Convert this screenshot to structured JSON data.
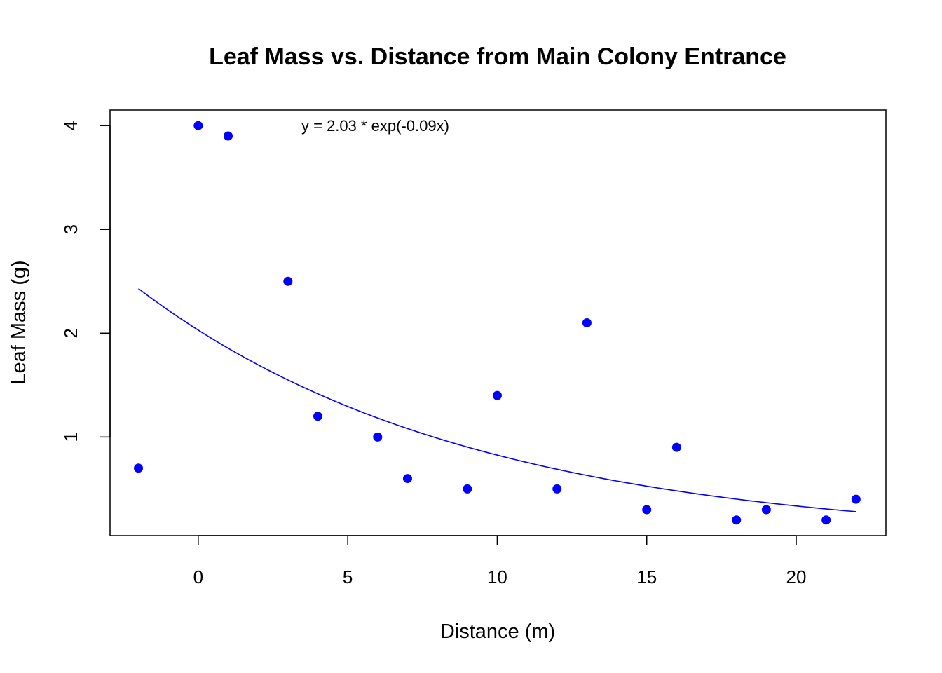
{
  "chart_data": {
    "type": "scatter",
    "title": "Leaf Mass vs. Distance from Main Colony Entrance",
    "xlabel": "Distance (m)",
    "ylabel": "Leaf Mass (g)",
    "xlim": [
      -2.95,
      23.0
    ],
    "ylim": [
      0.05,
      4.15
    ],
    "x_ticks": [
      0,
      5,
      10,
      15,
      20
    ],
    "y_ticks": [
      1,
      2,
      3,
      4
    ],
    "grid": false,
    "legend": "none",
    "points": {
      "x": [
        -2,
        0,
        1,
        3,
        4,
        6,
        7,
        9,
        10,
        12,
        13,
        15,
        16,
        18,
        19,
        21,
        22
      ],
      "y": [
        0.7,
        4.0,
        3.9,
        2.5,
        1.2,
        1.0,
        0.6,
        0.5,
        1.4,
        0.5,
        2.1,
        0.3,
        0.9,
        0.2,
        0.3,
        0.2,
        0.4
      ]
    },
    "fit": {
      "type": "exponential",
      "a": 2.03,
      "b": -0.09,
      "x_range": [
        -2,
        22
      ]
    },
    "annotation": "y = 2.03 * exp(-0.09x)",
    "colors": {
      "points": "#0000FF",
      "fit_line": "#0000FF"
    }
  }
}
